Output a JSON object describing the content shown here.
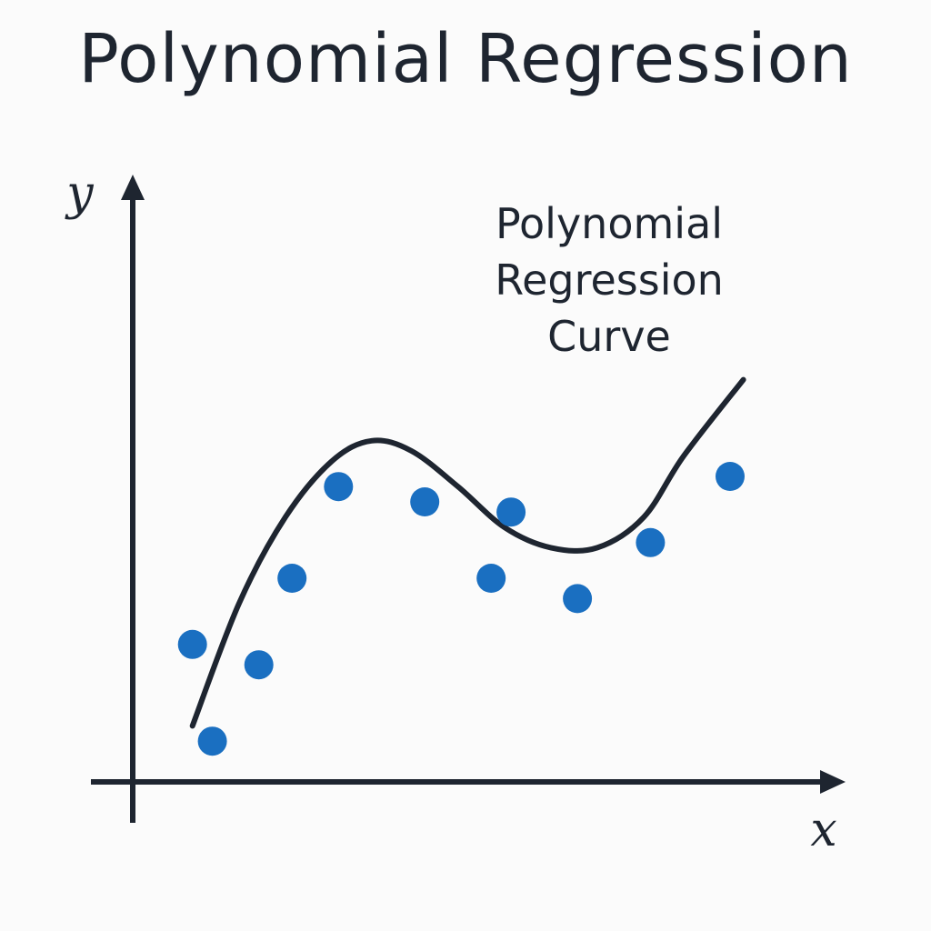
{
  "chart_data": {
    "type": "scatter",
    "title": "Polynomial Regression",
    "xlabel": "x",
    "ylabel": "y",
    "grid": false,
    "legend": "none",
    "annotation_lines": [
      "Polynomial",
      "Regression",
      "Curve"
    ],
    "xlim": [
      0,
      10
    ],
    "ylim": [
      0,
      10
    ],
    "point_color": "#1a6fc1",
    "line_color": "#1e2530",
    "series": [
      {
        "type": "scatter",
        "x": [
          0.9,
          1.2,
          1.9,
          2.4,
          3.1,
          4.4,
          5.4,
          5.7,
          6.7,
          7.8,
          9.0
        ],
        "y": [
          2.7,
          0.8,
          2.3,
          4.0,
          5.8,
          5.5,
          4.0,
          5.3,
          3.6,
          4.7,
          6.0
        ]
      },
      {
        "type": "line",
        "x": [
          0.9,
          1.6,
          2.3,
          3.0,
          3.6,
          4.2,
          4.9,
          5.6,
          6.3,
          7.0,
          7.7,
          8.3,
          9.2
        ],
        "y": [
          1.1,
          3.5,
          5.2,
          6.3,
          6.7,
          6.5,
          5.8,
          5.0,
          4.6,
          4.6,
          5.2,
          6.4,
          7.9
        ]
      }
    ]
  }
}
